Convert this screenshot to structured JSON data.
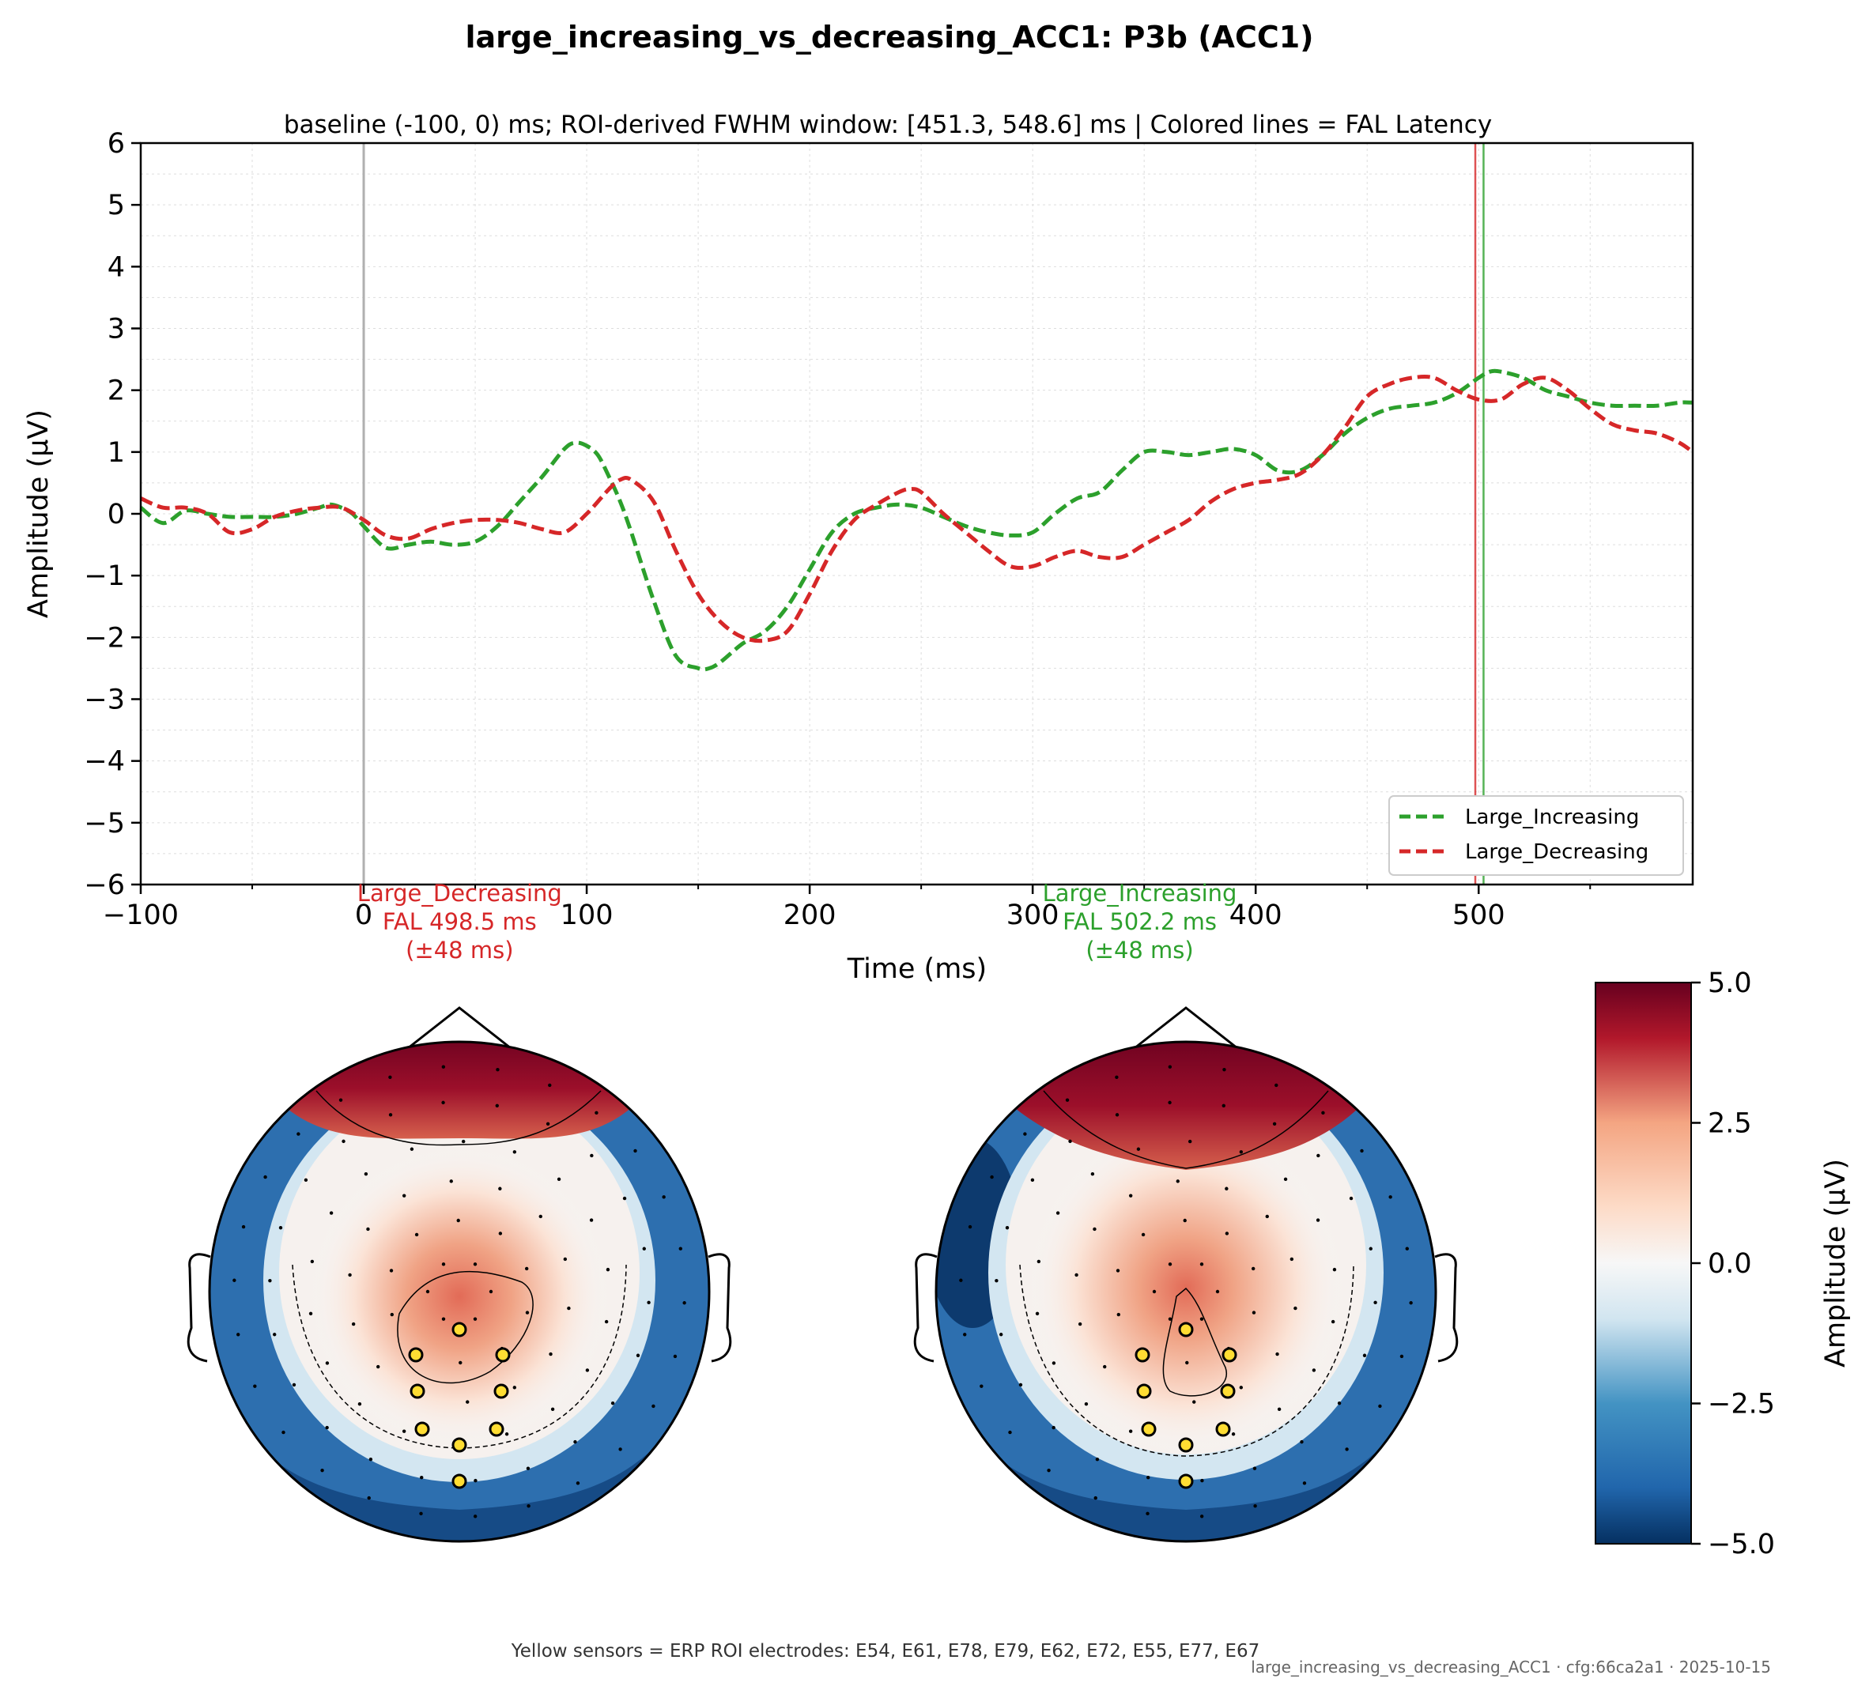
{
  "chart_data": [
    {
      "type": "line",
      "title": "large_increasing_vs_decreasing_ACC1: P3b (ACC1)",
      "subtitle": "baseline (-100, 0) ms; ROI-derived FWHM window: [451.3, 548.6] ms | Colored lines = FAL Latency",
      "xlabel": "Time (ms)",
      "ylabel": "Amplitude (μV)",
      "xlim": [
        -100,
        596
      ],
      "ylim": [
        -6,
        6
      ],
      "xticks": [
        -100,
        0,
        100,
        200,
        300,
        400,
        500
      ],
      "xtick_labels": [
        "−100",
        "0",
        "100",
        "200",
        "300",
        "400",
        "500"
      ],
      "yticks": [
        -6,
        -5,
        -4,
        -3,
        -2,
        -1,
        0,
        1,
        2,
        3,
        4,
        5,
        6
      ],
      "ytick_labels": [
        "−6",
        "−5",
        "−4",
        "−3",
        "−2",
        "−1",
        "0",
        "1",
        "2",
        "3",
        "4",
        "5",
        "6"
      ],
      "grid": true,
      "legend_position": "lower-right",
      "zero_line_x": 0,
      "series": [
        {
          "name": "Large_Increasing",
          "color": "#2ca02c",
          "style": "dashed",
          "x": [
            -100,
            -90,
            -80,
            -70,
            -60,
            -50,
            -40,
            -30,
            -20,
            -15,
            -10,
            -5,
            0,
            10,
            20,
            30,
            40,
            50,
            60,
            70,
            80,
            90,
            95,
            100,
            105,
            110,
            115,
            120,
            130,
            140,
            150,
            155,
            160,
            170,
            180,
            190,
            200,
            210,
            220,
            230,
            240,
            250,
            260,
            270,
            280,
            290,
            300,
            310,
            320,
            330,
            340,
            350,
            360,
            370,
            380,
            390,
            400,
            410,
            420,
            430,
            440,
            450,
            460,
            470,
            480,
            490,
            500,
            505,
            510,
            520,
            530,
            540,
            550,
            560,
            570,
            580,
            590,
            596
          ],
          "y": [
            0.1,
            -0.15,
            0.05,
            0.0,
            -0.05,
            -0.05,
            -0.05,
            0.0,
            0.1,
            0.15,
            0.1,
            0.0,
            -0.2,
            -0.55,
            -0.5,
            -0.45,
            -0.5,
            -0.45,
            -0.2,
            0.2,
            0.6,
            1.05,
            1.15,
            1.1,
            0.95,
            0.6,
            0.2,
            -0.3,
            -1.4,
            -2.3,
            -2.5,
            -2.5,
            -2.4,
            -2.1,
            -1.9,
            -1.5,
            -0.9,
            -0.3,
            0.0,
            0.1,
            0.15,
            0.1,
            -0.05,
            -0.2,
            -0.3,
            -0.35,
            -0.3,
            0.0,
            0.25,
            0.35,
            0.7,
            1.0,
            1.0,
            0.95,
            1.0,
            1.05,
            0.95,
            0.7,
            0.7,
            0.95,
            1.3,
            1.55,
            1.7,
            1.75,
            1.8,
            1.95,
            2.2,
            2.3,
            2.3,
            2.2,
            2.0,
            1.9,
            1.8,
            1.75,
            1.75,
            1.75,
            1.8,
            1.8
          ]
        },
        {
          "name": "Large_Decreasing",
          "color": "#d62728",
          "style": "dashed",
          "x": [
            -100,
            -90,
            -80,
            -70,
            -60,
            -50,
            -40,
            -30,
            -20,
            -10,
            0,
            10,
            20,
            30,
            40,
            50,
            60,
            70,
            80,
            90,
            100,
            110,
            115,
            120,
            130,
            140,
            150,
            160,
            170,
            180,
            190,
            200,
            210,
            220,
            230,
            240,
            245,
            250,
            260,
            270,
            280,
            290,
            300,
            310,
            320,
            330,
            340,
            350,
            360,
            370,
            380,
            390,
            400,
            410,
            420,
            430,
            440,
            450,
            460,
            470,
            480,
            490,
            500,
            510,
            520,
            530,
            540,
            550,
            560,
            570,
            580,
            590,
            596
          ],
          "y": [
            0.25,
            0.1,
            0.1,
            0.0,
            -0.3,
            -0.25,
            -0.05,
            0.05,
            0.1,
            0.1,
            -0.1,
            -0.35,
            -0.4,
            -0.25,
            -0.15,
            -0.1,
            -0.1,
            -0.15,
            -0.25,
            -0.3,
            0.0,
            0.4,
            0.55,
            0.55,
            0.2,
            -0.6,
            -1.3,
            -1.75,
            -2.0,
            -2.05,
            -1.9,
            -1.3,
            -0.6,
            -0.1,
            0.15,
            0.35,
            0.4,
            0.35,
            0.0,
            -0.3,
            -0.6,
            -0.85,
            -0.85,
            -0.7,
            -0.6,
            -0.7,
            -0.7,
            -0.5,
            -0.3,
            -0.1,
            0.2,
            0.4,
            0.5,
            0.55,
            0.65,
            0.95,
            1.4,
            1.9,
            2.1,
            2.2,
            2.2,
            2.0,
            1.85,
            1.85,
            2.1,
            2.2,
            2.0,
            1.7,
            1.45,
            1.35,
            1.3,
            1.15,
            1.0
          ]
        }
      ],
      "vlines": [
        {
          "x": 498.5,
          "color": "#d62728"
        },
        {
          "x": 502.2,
          "color": "#2ca02c"
        }
      ],
      "annotations": [
        {
          "x": 43,
          "lines": [
            "Large_Decreasing",
            "FAL 498.5 ms",
            "(±48 ms)"
          ],
          "color": "#d62728"
        },
        {
          "x": 348,
          "lines": [
            "Large_Increasing",
            "FAL 502.2 ms",
            "(±48 ms)"
          ],
          "color": "#2ca02c"
        }
      ]
    },
    {
      "type": "heatmap",
      "subtype": "topomap",
      "count": 2,
      "colormap": "RdBu_r",
      "colorbar": {
        "label": "Amplitude (μV)",
        "min": -5.0,
        "max": 5.0,
        "ticks": [
          5.0,
          2.5,
          0.0,
          -2.5,
          -5.0
        ],
        "tick_labels": [
          "5.0",
          "2.5",
          "0.0",
          "−2.5",
          "−5.0"
        ]
      },
      "roi_electrodes": [
        "E54",
        "E61",
        "E78",
        "E79",
        "E62",
        "E72",
        "E55",
        "E77",
        "E67"
      ],
      "roi_color": "#ffdd33"
    }
  ],
  "footer": {
    "caption": "Yellow sensors = ERP ROI electrodes: E54, E61, E78, E79, E62, E72, E55, E77, E67",
    "stamp": "large_increasing_vs_decreasing_ACC1 · cfg:66ca2a1 · 2025-10-15"
  }
}
